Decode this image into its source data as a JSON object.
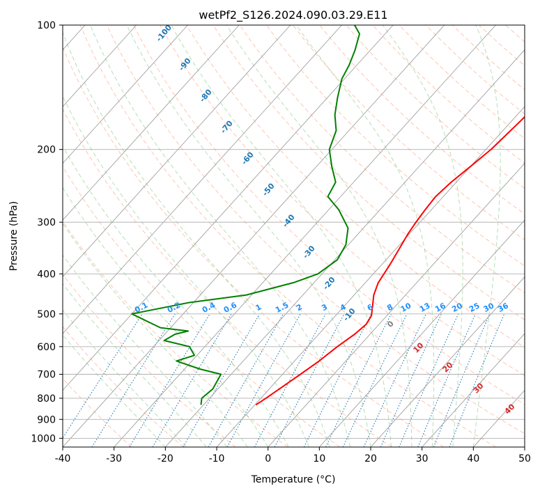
{
  "chart_data": {
    "type": "skew-t",
    "title": "wetPf2_S126.2024.090.03.29.E11",
    "xlabel": "Temperature (°C)",
    "ylabel": "Pressure (hPa)",
    "xlim": [
      -40,
      50
    ],
    "ylim": [
      1050,
      100
    ],
    "y_scale": "log",
    "grid": true,
    "x_ticks": [
      -40,
      -30,
      -20,
      -10,
      0,
      10,
      20,
      30,
      40,
      50
    ],
    "y_ticks": [
      100,
      200,
      300,
      400,
      500,
      600,
      700,
      800,
      900,
      1000
    ],
    "colors": {
      "temperature": "#ff0000",
      "dewpoint": "#008000",
      "dry_adiabats": "#ff7f50",
      "moist_adiabats": "#2ca02c",
      "mixing_ratio": "#1f77b4",
      "isotherms": "#a0a0a0"
    },
    "series": [
      {
        "role": "temperature",
        "points": [
          [
            830,
            -9.8
          ],
          [
            800,
            -9.0
          ],
          [
            750,
            -7.8
          ],
          [
            700,
            -6.5
          ],
          [
            650,
            -5.2
          ],
          [
            600,
            -4.2
          ],
          [
            560,
            -3.0
          ],
          [
            530,
            -2.5
          ],
          [
            505,
            -3.0
          ],
          [
            480,
            -4.4
          ],
          [
            450,
            -6.2
          ],
          [
            420,
            -7.5
          ],
          [
            380,
            -8.4
          ],
          [
            350,
            -9.3
          ],
          [
            320,
            -10.3
          ],
          [
            300,
            -10.8
          ],
          [
            280,
            -11.2
          ],
          [
            260,
            -11.5
          ],
          [
            240,
            -11.0
          ],
          [
            220,
            -10.0
          ],
          [
            200,
            -9.0
          ],
          [
            180,
            -8.5
          ],
          [
            160,
            -8.0
          ],
          [
            140,
            -7.5
          ],
          [
            120,
            -7.8
          ],
          [
            110,
            -8.0
          ],
          [
            100,
            -8.0
          ]
        ]
      },
      {
        "role": "dewpoint",
        "points": [
          [
            830,
            -20.5
          ],
          [
            800,
            -21.5
          ],
          [
            760,
            -21.0
          ],
          [
            700,
            -22.0
          ],
          [
            680,
            -27.0
          ],
          [
            650,
            -33.0
          ],
          [
            630,
            -30.5
          ],
          [
            600,
            -33.0
          ],
          [
            580,
            -39.0
          ],
          [
            560,
            -38.0
          ],
          [
            550,
            -36.0
          ],
          [
            540,
            -42.0
          ],
          [
            500,
            -50.0
          ],
          [
            470,
            -41.0
          ],
          [
            450,
            -31.0
          ],
          [
            420,
            -24.0
          ],
          [
            400,
            -20.8
          ],
          [
            370,
            -19.5
          ],
          [
            340,
            -20.5
          ],
          [
            310,
            -23.0
          ],
          [
            280,
            -28.0
          ],
          [
            260,
            -32.5
          ],
          [
            240,
            -33.5
          ],
          [
            220,
            -37.0
          ],
          [
            200,
            -40.5
          ],
          [
            180,
            -42.5
          ],
          [
            165,
            -45.5
          ],
          [
            150,
            -48.0
          ],
          [
            135,
            -50.5
          ],
          [
            125,
            -51.5
          ],
          [
            115,
            -53.0
          ],
          [
            105,
            -55.0
          ],
          [
            100,
            -57.5
          ]
        ]
      }
    ],
    "dry_adiabat_labels": [
      "-100",
      "-90",
      "-80",
      "-70",
      "-60",
      "-50",
      "-40",
      "-30",
      "-20",
      "-10"
    ],
    "dry_adiabat_values": [
      -100,
      -90,
      -80,
      -70,
      -60,
      -50,
      -40,
      -30,
      -20,
      -10
    ],
    "mixing_ratio_labels": [
      "0.1",
      "0.2",
      "0.4",
      "0.6",
      "1",
      "1.5",
      "2",
      "3",
      "4",
      "6",
      "8",
      "10",
      "13",
      "16",
      "20",
      "25",
      "30",
      "36"
    ],
    "mixing_ratio_values": [
      0.1,
      0.2,
      0.4,
      0.6,
      1,
      1.5,
      2,
      3,
      4,
      6,
      8,
      10,
      13,
      16,
      20,
      25,
      30,
      36
    ],
    "moist_adiabat_labels": [
      "0",
      "10",
      "20",
      "30",
      "40"
    ],
    "moist_adiabat_values": [
      0,
      10,
      20,
      30,
      40
    ]
  }
}
